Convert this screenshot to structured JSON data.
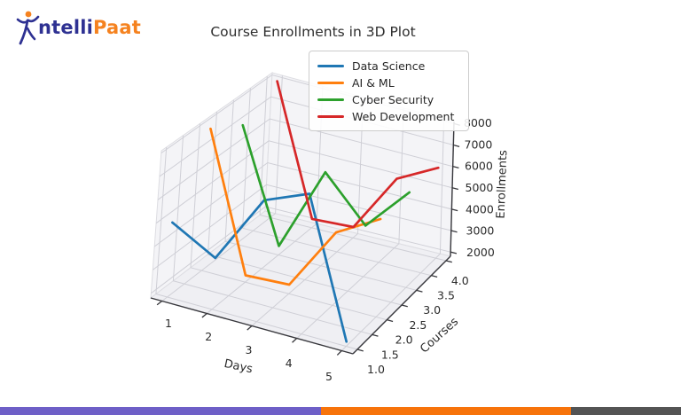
{
  "logo": {
    "text_primary": "ntelli",
    "text_secondary": "Paat",
    "color_primary": "#2e3192",
    "color_secondary": "#f5821f"
  },
  "chart_data": {
    "type": "line3d",
    "title": "Course Enrollments in 3D Plot",
    "xlabel": "Days",
    "ylabel": "Courses",
    "zlabel": "Enrollments",
    "x": [
      1,
      2,
      3,
      4,
      5
    ],
    "x_tick_labels": [
      "1",
      "2",
      "3",
      "4",
      "5"
    ],
    "y_ticks": [
      1.0,
      1.5,
      2.0,
      2.5,
      3.0,
      3.5,
      4.0
    ],
    "y_tick_labels": [
      "1.0",
      "1.5",
      "2.0",
      "2.5",
      "3.0",
      "3.5",
      "4.0"
    ],
    "z_ticks": [
      2000,
      3000,
      4000,
      5000,
      6000,
      7000,
      8000
    ],
    "z_tick_labels": [
      "2000",
      "3000",
      "4000",
      "5000",
      "6000",
      "7000",
      "8000"
    ],
    "xlim": [
      0.75,
      5.25
    ],
    "ylim": [
      0.85,
      4.15
    ],
    "zlim": [
      1800,
      8100
    ],
    "grid": true,
    "legend_position": "upper right",
    "series": [
      {
        "name": "Data Science",
        "course": 1,
        "color": "#1f77b4",
        "values": [
          5000,
          4000,
          7000,
          7800,
          2000
        ]
      },
      {
        "name": "AI & ML",
        "course": 2,
        "color": "#ff7f0e",
        "values": [
          8000,
          2100,
          2200,
          5000,
          6100
        ]
      },
      {
        "name": "Cyber Security",
        "course": 3,
        "color": "#2ca02c",
        "values": [
          7100,
          2200,
          6000,
          4100,
          6100
        ]
      },
      {
        "name": "Web Development",
        "course": 4,
        "color": "#d62728",
        "values": [
          8000,
          2200,
          2300,
          5000,
          6000
        ]
      }
    ]
  },
  "footer_bars": [
    {
      "name": "purple",
      "color": "#6e5fc7"
    },
    {
      "name": "orange",
      "color": "#f7730a"
    },
    {
      "name": "gray",
      "color": "#545454"
    }
  ]
}
